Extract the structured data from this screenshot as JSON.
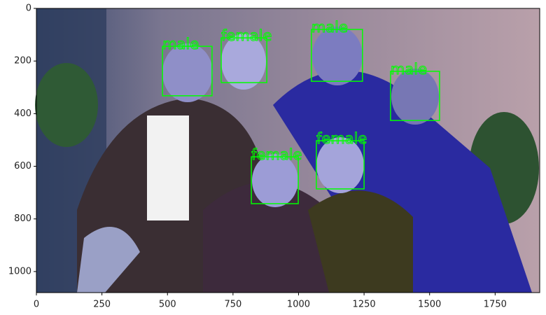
{
  "axes": {
    "xlim": [
      0,
      1920
    ],
    "ylim": [
      1080,
      0
    ],
    "xticks": [
      0,
      250,
      500,
      750,
      1000,
      1250,
      1500,
      1750
    ],
    "yticks": [
      0,
      200,
      400,
      600,
      800,
      1000
    ]
  },
  "box_color": "#00ff00",
  "detections": [
    {
      "label": "male",
      "x": 481,
      "y": 144,
      "w": 189,
      "h": 188
    },
    {
      "label": "female",
      "x": 705,
      "y": 112,
      "w": 174,
      "h": 170
    },
    {
      "label": "male",
      "x": 1049,
      "y": 80,
      "w": 195,
      "h": 197
    },
    {
      "label": "male",
      "x": 1351,
      "y": 239,
      "w": 187,
      "h": 187
    },
    {
      "label": "female",
      "x": 820,
      "y": 564,
      "w": 179,
      "h": 178
    },
    {
      "label": "female",
      "x": 1068,
      "y": 503,
      "w": 182,
      "h": 183
    }
  ]
}
